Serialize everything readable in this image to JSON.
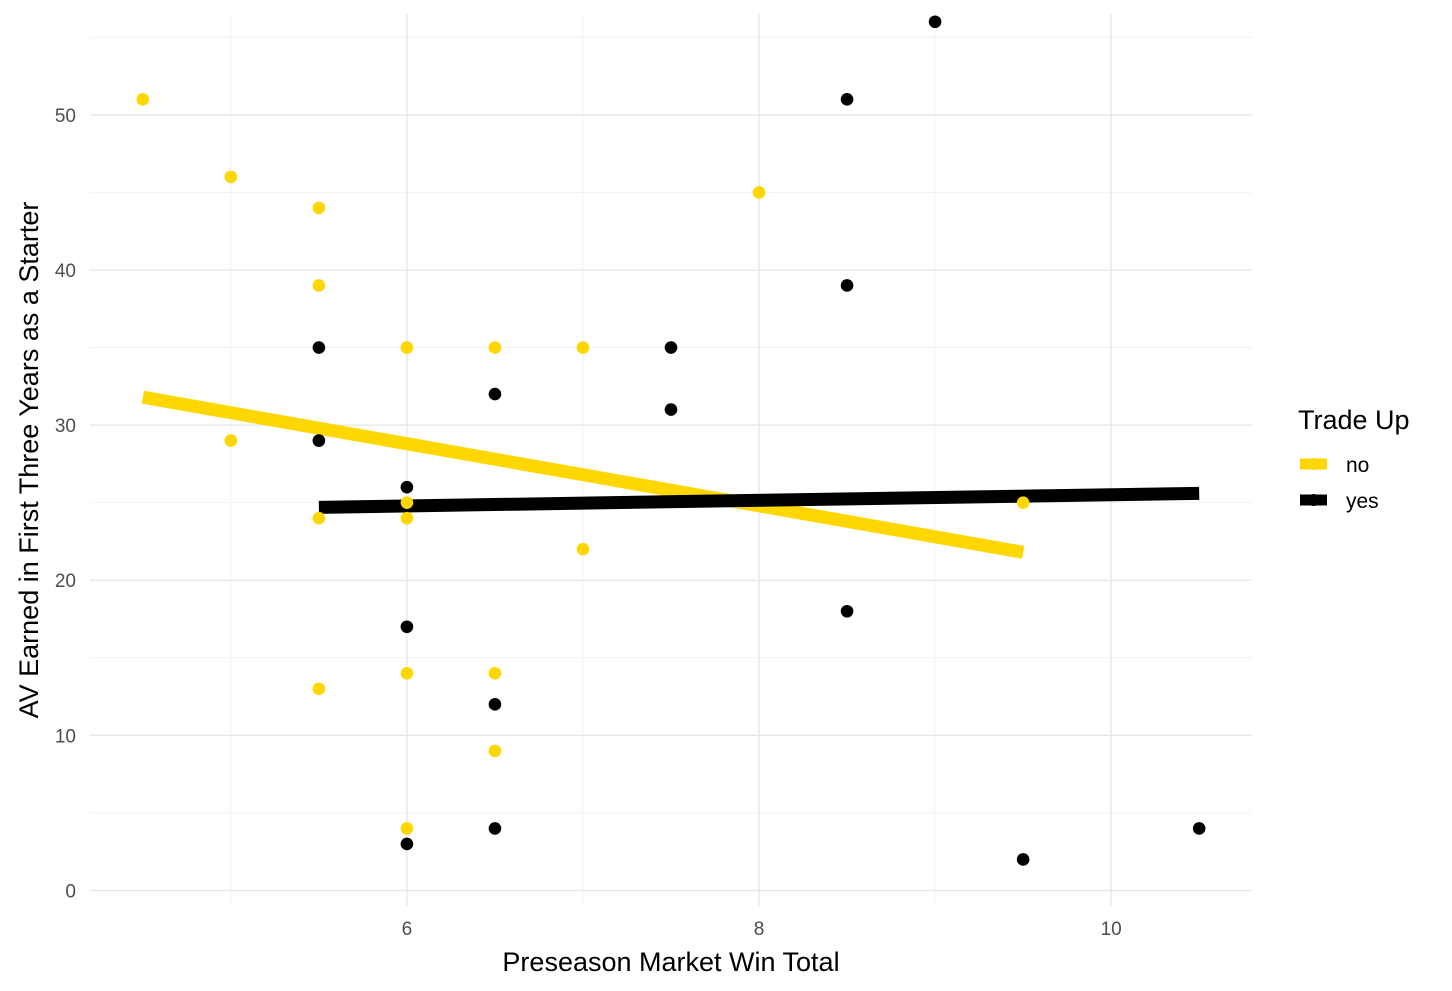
{
  "chart_data": {
    "type": "scatter",
    "xlabel": "Preseason Market Win Total",
    "ylabel": "AV Earned in First Three Years as a Starter",
    "xlim": [
      4.2,
      10.8
    ],
    "ylim": [
      -1,
      56.5
    ],
    "x_ticks": [
      6,
      8,
      10
    ],
    "y_ticks": [
      0,
      10,
      20,
      30,
      40,
      50
    ],
    "grid": true,
    "legend": {
      "title": "Trade Up",
      "position": "right"
    },
    "series": [
      {
        "name": "no",
        "color": "#FFD700",
        "points": [
          [
            4.5,
            51
          ],
          [
            5,
            46
          ],
          [
            5,
            29
          ],
          [
            5.5,
            44
          ],
          [
            5.5,
            39
          ],
          [
            5.5,
            24
          ],
          [
            5.5,
            13
          ],
          [
            6,
            35
          ],
          [
            6,
            25
          ],
          [
            6,
            24
          ],
          [
            6,
            14
          ],
          [
            6,
            4
          ],
          [
            6.5,
            35
          ],
          [
            6.5,
            14
          ],
          [
            6.5,
            9
          ],
          [
            7,
            35
          ],
          [
            7,
            22
          ],
          [
            8,
            45
          ],
          [
            9.5,
            25
          ]
        ],
        "trend": [
          [
            4.5,
            31.8
          ],
          [
            9.5,
            21.8
          ]
        ]
      },
      {
        "name": "yes",
        "color": "#000000",
        "points": [
          [
            5.5,
            35
          ],
          [
            5.5,
            29
          ],
          [
            6,
            26
          ],
          [
            6,
            17
          ],
          [
            6,
            3
          ],
          [
            6.5,
            32
          ],
          [
            6.5,
            12
          ],
          [
            6.5,
            4
          ],
          [
            7.5,
            35
          ],
          [
            7.5,
            31
          ],
          [
            8.5,
            51
          ],
          [
            8.5,
            39
          ],
          [
            8.5,
            18
          ],
          [
            9,
            56
          ],
          [
            9.5,
            2
          ],
          [
            10.5,
            4
          ]
        ],
        "trend": [
          [
            5.5,
            24.7
          ],
          [
            10.5,
            25.6
          ]
        ]
      }
    ]
  }
}
